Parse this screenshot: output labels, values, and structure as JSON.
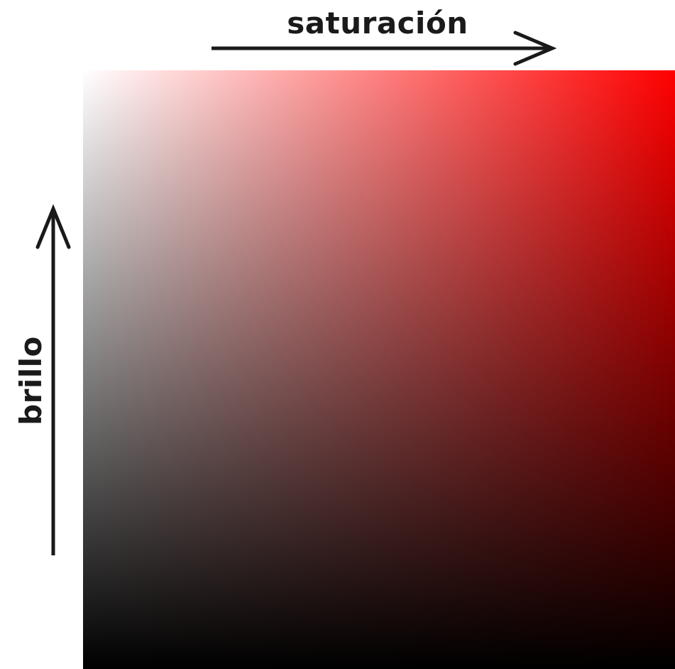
{
  "diagram": {
    "x_axis_label": "saturación",
    "y_axis_label": "brillo",
    "colors": {
      "hue": "#ff0000",
      "low_saturation": "#ffffff",
      "low_brightness": "#000000",
      "ink": "#1a1a1a"
    },
    "icons": {
      "x_arrow": "arrow-right-icon",
      "y_arrow": "arrow-up-icon"
    }
  }
}
